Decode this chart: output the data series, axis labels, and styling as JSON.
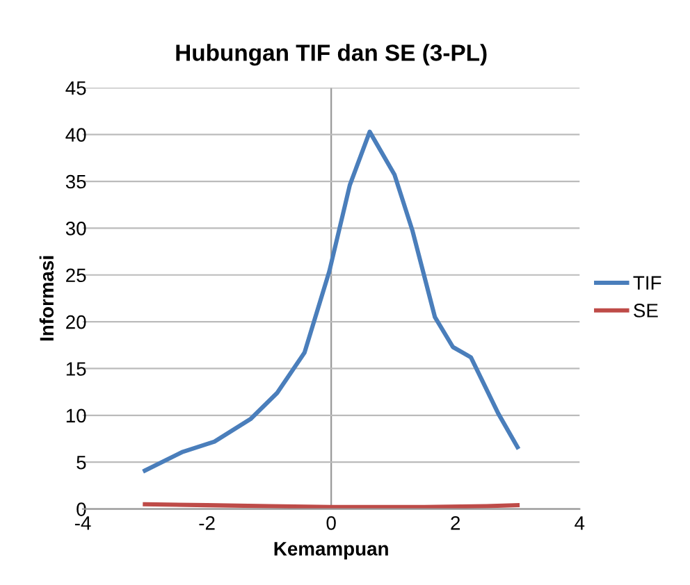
{
  "chart_data": {
    "type": "line",
    "title": "Hubungan TIF dan SE (3-PL)",
    "xlabel": "Kemampuan",
    "ylabel": "Informasi",
    "series": [
      {
        "name": "TIF",
        "color": "#4a7ebb",
        "x": [
          -3.0,
          -2.39,
          -1.88,
          -1.3,
          -0.87,
          -0.43,
          -0.03,
          0.3,
          0.62,
          1.02,
          1.31,
          1.67,
          1.96,
          2.25,
          2.69,
          3.0
        ],
        "values": [
          4.1,
          6.1,
          7.2,
          9.6,
          12.4,
          16.7,
          25.4,
          34.6,
          40.3,
          35.7,
          29.7,
          20.5,
          17.3,
          16.2,
          10.2,
          6.6
        ]
      },
      {
        "name": "SE",
        "color": "#be4b48",
        "x": [
          -3.0,
          -2.0,
          -1.0,
          0.0,
          0.6,
          1.5,
          2.5,
          3.0
        ],
        "values": [
          0.5,
          0.4,
          0.3,
          0.2,
          0.2,
          0.2,
          0.3,
          0.4
        ]
      }
    ],
    "xlim": [
      -4,
      4
    ],
    "xticks": [
      -4,
      -2,
      0,
      2,
      4
    ],
    "ylim": [
      0,
      45
    ],
    "yticks": [
      0,
      5,
      10,
      15,
      20,
      25,
      30,
      35,
      40,
      45
    ],
    "grid": "y",
    "legend": "right",
    "marker": "none",
    "line_style": "solid"
  }
}
